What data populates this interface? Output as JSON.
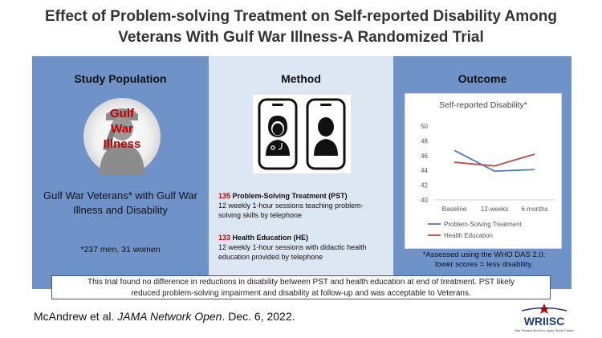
{
  "header": {
    "title_line1": "Effect of Problem-solving Treatment on Self-reported Disability Among",
    "title_line2": "Veterans With Gulf War Illness-A Randomized Trial"
  },
  "population": {
    "heading": "Study Population",
    "badge_line1": "Gulf",
    "badge_line2": "War",
    "badge_line3": "Illness",
    "description": "Gulf War Veterans* with Gulf War Illness and Disability",
    "note": "*237 men, 31 women"
  },
  "method": {
    "heading": "Method",
    "arm1_count": "135",
    "arm1_name": "Problem-Solving Treatment (PST)",
    "arm1_desc_line1": "12 weekly 1-hour sessions teaching problem-",
    "arm1_desc_line2": "solving skills by telephone",
    "arm2_count": "133",
    "arm2_name": "Health Education (HE)",
    "arm2_desc_line1": "12 weekly 1-hour sessions with didactic health",
    "arm2_desc_line2": "education provided by telephone"
  },
  "outcome": {
    "heading": "Outcome",
    "note_line1": "*Assessed using the WHO DAS 2.0;",
    "note_line2": "lower scores = less disability."
  },
  "chart_data": {
    "type": "line",
    "title": "Self-reported  Disability*",
    "categories": [
      "Baseline",
      "12-weeks",
      "6-months"
    ],
    "ylim": [
      40,
      50
    ],
    "yticks": [
      40,
      42,
      44,
      46,
      48,
      50
    ],
    "grid": false,
    "legend_position": "bottom",
    "series": [
      {
        "name": "Problem-Solving Treatment",
        "values": [
          46.7,
          43.9,
          44.1
        ],
        "color": "#4a7ebb"
      },
      {
        "name": "Health Education",
        "values": [
          45.1,
          44.6,
          46.2
        ],
        "color": "#be4b48"
      }
    ]
  },
  "summary": {
    "line1": "This trial found no difference in reductions in disability between PST and health education at end of treatment. PST likely",
    "line2": "reduced problem-solving impairment and disability at follow-up and was acceptable to Veterans."
  },
  "citation": {
    "authors": "McAndrew et al. ",
    "journal": "JAMA Network Open",
    "date": ". Dec. 6, 2022."
  },
  "logo": {
    "name": "WRIISC",
    "tagline": "War Related Illness & Injury Study Center"
  },
  "colors": {
    "panel_blue": "#6f93c8",
    "panel_light": "#dde6f3",
    "accent_red": "#c00000"
  }
}
